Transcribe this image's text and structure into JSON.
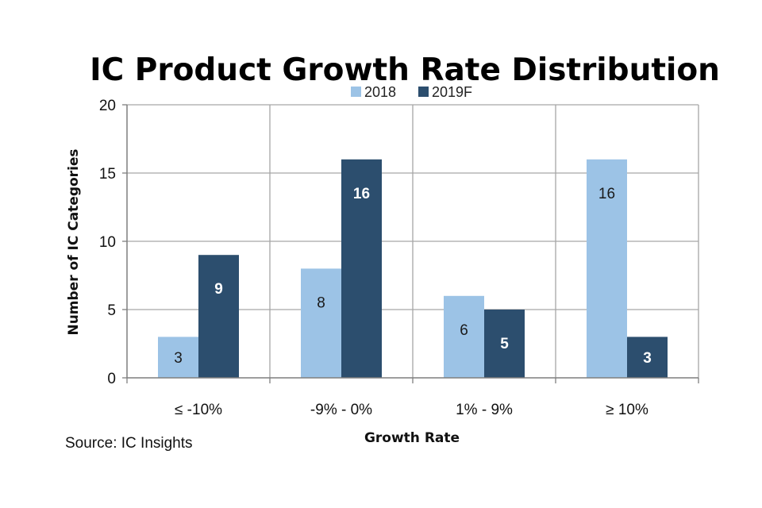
{
  "chart_data": {
    "type": "bar",
    "title": "IC Product Growth Rate Distribution",
    "xlabel": "Growth Rate",
    "ylabel": "Number of IC Categories",
    "categories": [
      "≤ -10%",
      "-9% - 0%",
      "1% - 9%",
      "≥ 10%"
    ],
    "series": [
      {
        "name": "2018",
        "values": [
          3,
          8,
          6,
          16
        ],
        "color": "#9cc3e6"
      },
      {
        "name": "2019F",
        "values": [
          9,
          16,
          5,
          3
        ],
        "color": "#2c4e6e"
      }
    ],
    "ylim": [
      0,
      20
    ],
    "yticks": [
      0,
      5,
      10,
      15,
      20
    ],
    "grid": true,
    "legend": "top-center",
    "data_labels": true
  },
  "source": "Source:  IC Insights"
}
